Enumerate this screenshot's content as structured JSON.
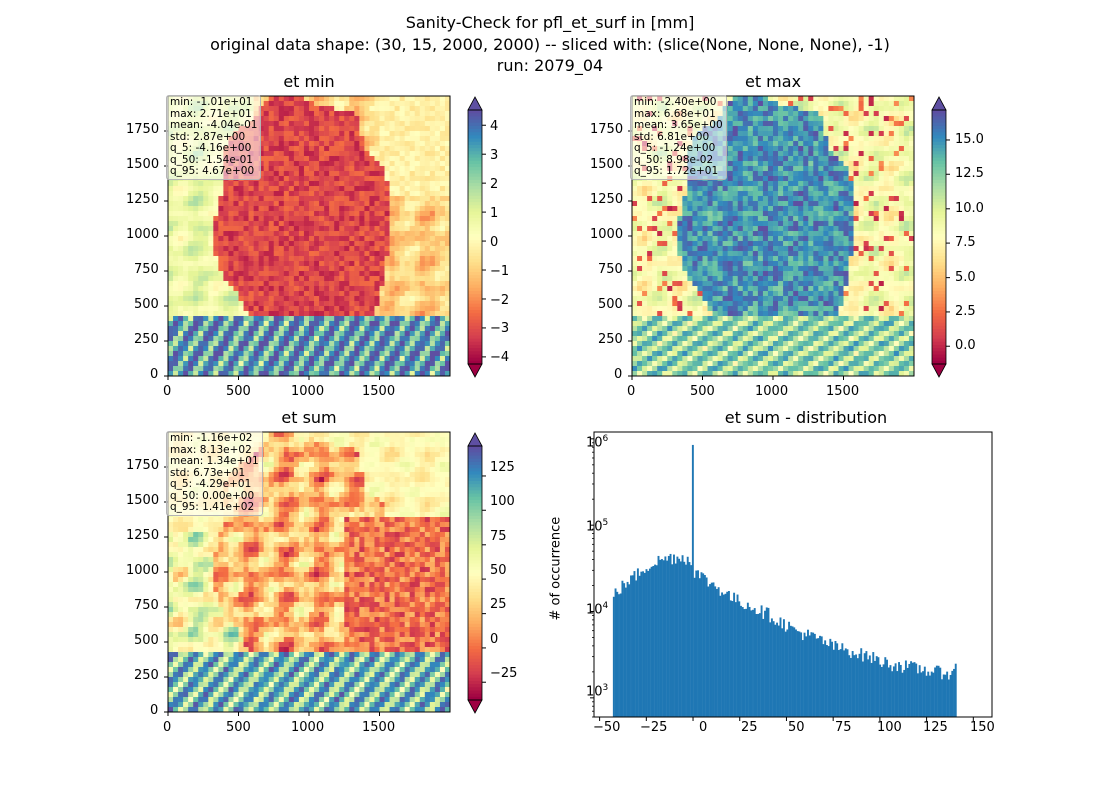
{
  "figure": {
    "title_line1": "Sanity-Check for pfl_et_surf in [mm]",
    "title_line2": "original data shape: (30, 15, 2000, 2000) -- sliced with: (slice(None, None, None), -1)",
    "title_line3": "run: 2079_04"
  },
  "panels": [
    {
      "title": "et min",
      "xticks": [
        "0",
        "500",
        "1000",
        "1500"
      ],
      "yticks": [
        "0",
        "250",
        "500",
        "750",
        "1000",
        "1250",
        "1500",
        "1750"
      ],
      "stats": [
        "min: -1.01e+01",
        "max: 2.71e+01",
        "mean: -4.04e-01",
        "std: 2.87e+00",
        "q_5: -4.16e+00",
        "q_50: -1.54e-01",
        "q_95: 4.67e+00"
      ],
      "colorbar_ticks": [
        "4",
        "3",
        "2",
        "1",
        "0",
        "−1",
        "−2",
        "−3",
        "−4"
      ],
      "colormap": "Spectral",
      "color_range": [
        -4.16,
        4.67
      ]
    },
    {
      "title": "et max",
      "xticks": [
        "0",
        "500",
        "1000",
        "1500"
      ],
      "yticks": [
        "0",
        "250",
        "500",
        "750",
        "1000",
        "1250",
        "1500",
        "1750"
      ],
      "stats": [
        "min: -2.40e+00",
        "max: 6.68e+01",
        "mean: 3.65e+00",
        "std: 6.81e+00",
        "q_5: -1.24e+00",
        "q_50: 8.98e-02",
        "q_95: 1.72e+01"
      ],
      "colorbar_ticks": [
        "15.0",
        "12.5",
        "10.0",
        "7.5",
        "5.0",
        "2.5",
        "0.0"
      ],
      "colormap": "Spectral",
      "color_range": [
        -1.24,
        17.2
      ]
    },
    {
      "title": "et sum",
      "xticks": [
        "0",
        "500",
        "1000",
        "1500"
      ],
      "yticks": [
        "0",
        "250",
        "500",
        "750",
        "1000",
        "1250",
        "1500",
        "1750"
      ],
      "stats": [
        "min: -1.16e+02",
        "max: 8.13e+02",
        "mean: 1.34e+01",
        "std: 6.73e+01",
        "q_5: -4.29e+01",
        "q_50: 0.00e+00",
        "q_95: 1.41e+02"
      ],
      "colorbar_ticks": [
        "125",
        "100",
        "75",
        "50",
        "25",
        "0",
        "−25"
      ],
      "colormap": "Spectral",
      "color_range": [
        -42.9,
        141
      ]
    }
  ],
  "histogram": {
    "title": "et sum - distribution",
    "ylabel": "# of occurrence",
    "xticks": [
      "−50",
      "−25",
      "0",
      "25",
      "50",
      "75",
      "100",
      "125",
      "150"
    ],
    "ytick_base": "10",
    "ytick_exponents": [
      "3",
      "4",
      "5",
      "6"
    ]
  },
  "chart_data": {
    "type": "bar",
    "title": "et sum - distribution",
    "xlabel": "",
    "ylabel": "# of occurrence",
    "xlim": [
      -53,
      160
    ],
    "ylim": [
      600,
      1200000
    ],
    "yscale": "log",
    "bar_color": "#1f77b4",
    "series": [
      {
        "bins_x": [
          -42.9,
          -40,
          -35,
          -30,
          -25,
          -20,
          -15,
          -10,
          -5,
          -1,
          -0.5,
          0,
          0.5,
          5,
          10,
          15,
          20,
          25,
          30,
          35,
          40,
          45,
          50,
          55,
          60,
          65,
          70,
          75,
          80,
          85,
          90,
          95,
          100,
          105,
          110,
          115,
          120,
          125,
          130,
          135,
          140,
          141
        ],
        "counts": [
          15000,
          18000,
          22000,
          27000,
          33000,
          38000,
          41000,
          43000,
          42000,
          40000,
          37000,
          850000,
          30000,
          25000,
          21000,
          18000,
          15000,
          13000,
          12000,
          10500,
          9500,
          8000,
          7000,
          6000,
          5500,
          5000,
          4500,
          4000,
          3700,
          3500,
          3200,
          3000,
          2700,
          2500,
          2400,
          2300,
          2200,
          2100,
          2000,
          2000,
          1900,
          2600
        ]
      }
    ]
  }
}
